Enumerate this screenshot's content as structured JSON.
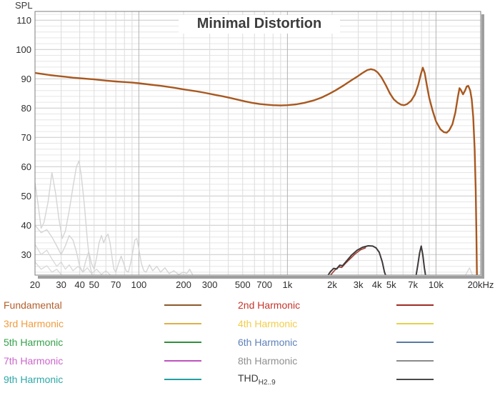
{
  "chart_data": {
    "type": "line",
    "title": "Minimal Distortion",
    "ylabel": "SPL",
    "x_scale": "log",
    "x_unit": "Hz",
    "xlim": [
      20,
      20000
    ],
    "ylim": [
      23,
      113
    ],
    "grid": "on: vertical log minor lines at every integer multiple per decade (decade lines darker), horizontal minor lines every 2 dB (10 dB lines darker)",
    "legend_position": "bottom",
    "y_minor_step": 2,
    "y_ticks_labeled": [
      110,
      100,
      90,
      80,
      70,
      60,
      50,
      40,
      30
    ],
    "x_ticks_labeled": [
      [
        20,
        "20"
      ],
      [
        30,
        "30"
      ],
      [
        40,
        "40"
      ],
      [
        50,
        "50"
      ],
      [
        70,
        "70"
      ],
      [
        100,
        "100"
      ],
      [
        200,
        "200"
      ],
      [
        300,
        "300"
      ],
      [
        500,
        "500"
      ],
      [
        700,
        "700"
      ],
      [
        1000,
        "1k"
      ],
      [
        2000,
        "2k"
      ],
      [
        3000,
        "3k"
      ],
      [
        4000,
        "4k"
      ],
      [
        5000,
        "5k"
      ],
      [
        7000,
        "7k"
      ],
      [
        10000,
        "10k"
      ],
      [
        20000,
        "20kHz"
      ]
    ],
    "series": [
      {
        "name": "low-level-artifact-1",
        "color": "#d5d5d5",
        "width": 1.4,
        "segments": [
          [
            [
              20,
              54.5
            ],
            [
              21,
              47
            ],
            [
              22,
              39
            ],
            [
              23,
              41
            ],
            [
              24.5,
              48
            ],
            [
              26,
              58
            ],
            [
              27.5,
              51
            ],
            [
              29,
              42
            ],
            [
              30.5,
              35.5
            ],
            [
              32,
              38
            ],
            [
              34,
              45
            ],
            [
              36,
              53
            ],
            [
              38,
              60
            ],
            [
              39.5,
              62
            ],
            [
              41,
              57
            ],
            [
              43,
              47
            ],
            [
              45,
              35
            ],
            [
              47,
              26
            ],
            [
              48.5,
              23
            ]
          ]
        ]
      },
      {
        "name": "low-level-artifact-2",
        "color": "#d5d5d5",
        "width": 1.4,
        "segments": [
          [
            [
              20,
              40
            ],
            [
              22,
              37.5
            ],
            [
              24,
              38.5
            ],
            [
              26,
              36
            ],
            [
              28,
              33
            ],
            [
              30,
              30
            ],
            [
              32,
              33
            ],
            [
              34,
              36.5
            ],
            [
              36,
              35
            ],
            [
              38,
              31
            ],
            [
              40,
              26
            ],
            [
              42,
              24
            ],
            [
              44,
              28
            ],
            [
              46,
              31
            ],
            [
              48,
              27
            ],
            [
              50,
              25
            ],
            [
              52,
              29
            ],
            [
              54,
              34
            ],
            [
              56,
              36.5
            ],
            [
              58,
              34
            ],
            [
              60,
              36
            ],
            [
              62,
              37
            ],
            [
              64,
              34
            ],
            [
              66,
              29
            ],
            [
              68,
              25
            ],
            [
              70,
              24
            ],
            [
              73,
              27
            ],
            [
              76,
              29.5
            ],
            [
              79,
              27
            ],
            [
              82,
              24.5
            ],
            [
              85,
              24
            ],
            [
              88,
              27
            ],
            [
              91,
              31
            ],
            [
              94,
              35
            ],
            [
              97,
              35.5
            ],
            [
              100,
              32
            ],
            [
              104,
              27
            ],
            [
              108,
              24.5
            ],
            [
              112,
              24
            ],
            [
              118,
              26.5
            ],
            [
              124,
              24.5
            ],
            [
              132,
              26
            ],
            [
              140,
              24
            ],
            [
              150,
              25.5
            ],
            [
              160,
              23.5
            ],
            [
              172,
              24.5
            ],
            [
              185,
              23.2
            ],
            [
              200,
              24
            ],
            [
              210,
              23.5
            ],
            [
              220,
              25
            ],
            [
              230,
              23.1
            ]
          ]
        ]
      },
      {
        "name": "low-level-artifact-3",
        "color": "#d8d8d8",
        "width": 1.3,
        "segments": [
          [
            [
              20,
              33.5
            ],
            [
              22,
              30
            ],
            [
              24,
              31.5
            ],
            [
              26,
              28.5
            ],
            [
              28,
              26
            ],
            [
              30,
              27.5
            ],
            [
              32,
              25
            ],
            [
              34,
              26.5
            ],
            [
              36,
              24.5
            ],
            [
              39,
              26
            ],
            [
              42,
              24
            ],
            [
              45,
              25.5
            ],
            [
              48,
              23.5
            ],
            [
              52,
              25
            ],
            [
              56,
              23.2
            ],
            [
              60,
              24.5
            ],
            [
              64,
              23.1
            ]
          ],
          [
            [
              20,
              27.5
            ],
            [
              22,
              25
            ],
            [
              24,
              26.2
            ],
            [
              26,
              24
            ],
            [
              28,
              25
            ],
            [
              30,
              23.2
            ]
          ],
          [
            [
              15800,
              23
            ],
            [
              16800,
              25.5
            ],
            [
              17600,
              23
            ]
          ]
        ]
      },
      {
        "name": "second-harmonic",
        "color": "#a33b30",
        "width": 1.6,
        "segments": [
          [
            [
              1950,
              23
            ],
            [
              2080,
              24.6
            ],
            [
              2200,
              25.8
            ],
            [
              2320,
              25.6
            ],
            [
              2480,
              27.2
            ],
            [
              2650,
              28.6
            ],
            [
              2850,
              30.2
            ],
            [
              3100,
              31.6
            ],
            [
              3350,
              32.3
            ]
          ]
        ]
      },
      {
        "name": "thd-h2-9",
        "color": "#3f3a39",
        "width": 2,
        "segments": [
          [
            [
              1880,
              23
            ],
            [
              1950,
              24.2
            ],
            [
              2050,
              25.3
            ],
            [
              2150,
              25.1
            ],
            [
              2250,
              26.4
            ],
            [
              2350,
              26.2
            ],
            [
              2500,
              27.8
            ],
            [
              2700,
              29.8
            ],
            [
              2950,
              31.5
            ],
            [
              3200,
              32.5
            ],
            [
              3500,
              33
            ],
            [
              3750,
              32.9
            ],
            [
              3950,
              32.3
            ],
            [
              4150,
              30.8
            ],
            [
              4350,
              27.5
            ],
            [
              4500,
              24
            ],
            [
              4580,
              23
            ]
          ],
          [
            [
              7350,
              23
            ],
            [
              7550,
              26.5
            ],
            [
              7750,
              30.5
            ],
            [
              7950,
              32.9
            ],
            [
              8150,
              30
            ],
            [
              8350,
              25.5
            ],
            [
              8500,
              23
            ]
          ]
        ]
      },
      {
        "name": "fundamental",
        "color": "#a8581f",
        "width": 2.4,
        "segments": [
          [
            [
              20,
              92
            ],
            [
              22,
              91.7
            ],
            [
              25,
              91.3
            ],
            [
              28,
              91
            ],
            [
              32,
              90.7
            ],
            [
              36,
              90.4
            ],
            [
              40,
              90.2
            ],
            [
              45,
              90
            ],
            [
              50,
              89.8
            ],
            [
              60,
              89.4
            ],
            [
              70,
              89.1
            ],
            [
              80,
              88.9
            ],
            [
              90,
              88.7
            ],
            [
              100,
              88.5
            ],
            [
              120,
              88
            ],
            [
              140,
              87.6
            ],
            [
              170,
              87
            ],
            [
              200,
              86.4
            ],
            [
              240,
              85.8
            ],
            [
              280,
              85.2
            ],
            [
              320,
              84.6
            ],
            [
              370,
              84
            ],
            [
              420,
              83.4
            ],
            [
              470,
              82.8
            ],
            [
              520,
              82.3
            ],
            [
              580,
              81.8
            ],
            [
              650,
              81.4
            ],
            [
              720,
              81.2
            ],
            [
              800,
              81
            ],
            [
              900,
              80.9
            ],
            [
              1000,
              81
            ],
            [
              1150,
              81.3
            ],
            [
              1300,
              81.8
            ],
            [
              1500,
              82.6
            ],
            [
              1700,
              83.6
            ],
            [
              1900,
              84.8
            ],
            [
              2100,
              86
            ],
            [
              2400,
              87.8
            ],
            [
              2700,
              89.5
            ],
            [
              3000,
              91
            ],
            [
              3200,
              92
            ],
            [
              3450,
              93
            ],
            [
              3650,
              93.3
            ],
            [
              3850,
              93
            ],
            [
              4050,
              92.2
            ],
            [
              4300,
              90.5
            ],
            [
              4600,
              87.8
            ],
            [
              4900,
              85
            ],
            [
              5200,
              83
            ],
            [
              5500,
              81.9
            ],
            [
              5800,
              81.2
            ],
            [
              6100,
              81
            ],
            [
              6400,
              81.4
            ],
            [
              6800,
              82.5
            ],
            [
              7200,
              84.5
            ],
            [
              7600,
              88
            ],
            [
              7900,
              91.5
            ],
            [
              8150,
              93.8
            ],
            [
              8400,
              92
            ],
            [
              8700,
              87.5
            ],
            [
              9000,
              83.5
            ],
            [
              9500,
              79
            ],
            [
              10000,
              75.5
            ],
            [
              10700,
              72.8
            ],
            [
              11300,
              71.8
            ],
            [
              11800,
              71.6
            ],
            [
              12300,
              72.5
            ],
            [
              12900,
              74.5
            ],
            [
              13500,
              78.5
            ],
            [
              14000,
              83.5
            ],
            [
              14400,
              86.8
            ],
            [
              14700,
              86.2
            ],
            [
              15200,
              84.7
            ],
            [
              15700,
              86
            ],
            [
              16100,
              87.4
            ],
            [
              16500,
              87.6
            ],
            [
              17000,
              86
            ],
            [
              17400,
              83
            ],
            [
              17800,
              77
            ],
            [
              18200,
              66
            ],
            [
              18500,
              52
            ],
            [
              18700,
              38
            ],
            [
              18850,
              23
            ]
          ]
        ]
      }
    ]
  },
  "legend": {
    "rows": [
      {
        "left": {
          "label": "Fundamental",
          "text_color": "#b2602e",
          "line_color": "#8b5a2b"
        },
        "right": {
          "label": "2nd Harmonic",
          "text_color": "#c4352a",
          "line_color": "#a02b22"
        }
      },
      {
        "left": {
          "label": "3rd Harmonic",
          "text_color": "#f09c40",
          "line_color": "#e2af47"
        },
        "right": {
          "label": "4th Harmonic",
          "text_color": "#f2ce49",
          "line_color": "#e5d248"
        }
      },
      {
        "left": {
          "label": "5th Harmonic",
          "text_color": "#35a14b",
          "line_color": "#2e8f3c"
        },
        "right": {
          "label": "6th Harmonic",
          "text_color": "#5e82ba",
          "line_color": "#5878a8"
        }
      },
      {
        "left": {
          "label": "7th Harmonic",
          "text_color": "#cc66cc",
          "line_color": "#be53be"
        },
        "right": {
          "label": "8th Harmonic",
          "text_color": "#909090",
          "line_color": "#8a8a8a"
        }
      },
      {
        "left": {
          "label": "9th Harmonic",
          "text_color": "#2fa8a8",
          "line_color": "#22a0a0"
        },
        "right": {
          "label": "THD",
          "sub": "H2..9",
          "text_color": "#3c3c3c",
          "line_color": "#4a4a4a"
        }
      }
    ]
  }
}
